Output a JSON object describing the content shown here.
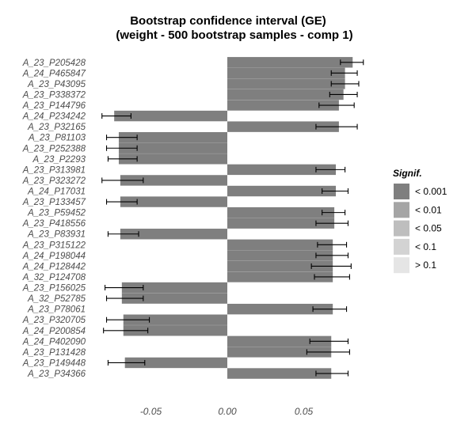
{
  "chart_data": {
    "type": "bar",
    "orientation": "horizontal",
    "title": "Bootstrap confidence interval (GE)",
    "subtitle": "(weight - 500 bootstrap samples - comp 1)",
    "xlabel": "",
    "ylabel": "",
    "xlim": [
      -0.082,
      0.095
    ],
    "x_ticks": [
      -0.05,
      0.0,
      0.05
    ],
    "x_tick_labels": [
      "-0.05",
      "0.00",
      "0.05"
    ],
    "grid": false,
    "legend": {
      "title": "Signif.",
      "position": "right",
      "items": [
        {
          "label": "< 0.001",
          "color": "#7f7f7f"
        },
        {
          "label": "< 0.01",
          "color": "#a5a5a5"
        },
        {
          "label": "< 0.05",
          "color": "#bebebe"
        },
        {
          "label": "< 0.1",
          "color": "#d3d3d3"
        },
        {
          "label": "> 0.1",
          "color": "#e5e5e5"
        }
      ]
    },
    "bar_color": "#7f7f7f",
    "categories": [
      "A_23_P205428",
      "A_24_P465847",
      "A_23_P43095",
      "A_23_P338372",
      "A_23_P144796",
      "A_24_P234242",
      "A_23_P32165",
      "A_23_P81103",
      "A_23_P252388",
      "A_23_P2293",
      "A_23_P313981",
      "A_23_P323272",
      "A_24_P17031",
      "A_23_P133457",
      "A_23_P59452",
      "A_23_P418556",
      "A_23_P83931",
      "A_23_P315122",
      "A_24_P198044",
      "A_24_P128442",
      "A_32_P124708",
      "A_23_P156025",
      "A_32_P52785",
      "A_23_P78061",
      "A_23_P320705",
      "A_24_P200854",
      "A_24_P402090",
      "A_23_P131428",
      "A_23_P149448",
      "A_23_P34366"
    ],
    "values": [
      0.082,
      0.077,
      0.077,
      0.076,
      0.073,
      -0.074,
      0.073,
      -0.071,
      -0.071,
      -0.071,
      0.071,
      -0.07,
      0.071,
      -0.07,
      0.07,
      0.07,
      -0.07,
      0.069,
      0.069,
      0.069,
      0.069,
      -0.069,
      -0.069,
      0.069,
      -0.068,
      -0.068,
      0.068,
      0.068,
      -0.067,
      0.068
    ],
    "ci_low": [
      0.074,
      0.068,
      0.068,
      0.067,
      0.06,
      -0.082,
      0.058,
      -0.079,
      -0.079,
      -0.078,
      0.058,
      -0.082,
      0.062,
      -0.079,
      0.062,
      0.058,
      -0.078,
      0.059,
      0.058,
      0.055,
      0.057,
      -0.08,
      -0.079,
      0.056,
      -0.079,
      -0.081,
      0.054,
      0.052,
      -0.078,
      0.058
    ],
    "ci_high": [
      0.089,
      0.085,
      0.086,
      0.085,
      0.083,
      -0.063,
      0.085,
      -0.059,
      -0.059,
      -0.059,
      0.077,
      -0.055,
      0.079,
      -0.059,
      0.077,
      0.079,
      -0.058,
      0.078,
      0.079,
      0.081,
      0.08,
      -0.055,
      -0.055,
      0.078,
      -0.051,
      -0.052,
      0.079,
      0.08,
      -0.054,
      0.079
    ]
  }
}
